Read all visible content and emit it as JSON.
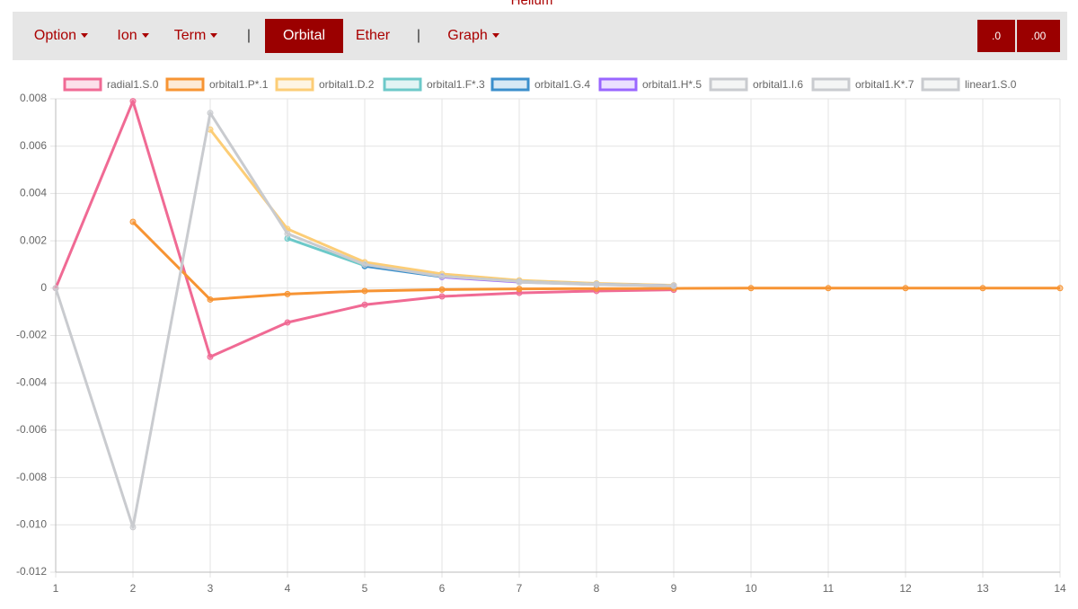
{
  "header": {
    "title": "Helium"
  },
  "nav": {
    "items": [
      "Option",
      "Ion",
      "Term",
      "|",
      "Orbital",
      "Ether",
      "|",
      "Graph"
    ],
    "buttons": [
      ".0",
      ".00"
    ]
  },
  "chart_data": {
    "type": "line",
    "x": [
      1,
      2,
      3,
      4,
      5,
      6,
      7,
      8,
      9,
      10,
      11,
      12,
      13,
      14
    ],
    "xlim": [
      1,
      14
    ],
    "xticks": [
      1,
      2,
      3,
      4,
      5,
      6,
      7,
      8,
      9,
      10,
      11,
      12,
      13,
      14
    ],
    "ylim": [
      -0.012,
      0.008
    ],
    "yticks": [
      -0.012,
      {
        "value": -0.01,
        "label": "-0.010"
      },
      -0.008,
      -0.006,
      -0.004,
      -0.002,
      0,
      0.002,
      0.004,
      0.006,
      0.008
    ],
    "grid": true,
    "series": [
      {
        "name": "radial1.S.0",
        "color": "#f06a94",
        "values": [
          0,
          0.0079,
          -0.0029,
          -0.00145,
          -0.0007,
          -0.00035,
          -0.0002,
          -0.00012,
          -7e-05,
          null,
          null,
          null,
          null,
          null
        ]
      },
      {
        "name": "orbital1.P*.1",
        "color": "#f79433",
        "values": [
          null,
          0.0028,
          -0.00048,
          -0.00025,
          -0.00012,
          -6e-05,
          -3e-05,
          -2e-05,
          -1e-05,
          0,
          0,
          0,
          0,
          0
        ]
      },
      {
        "name": "orbital1.D.2",
        "color": "#fccd76",
        "values": [
          null,
          null,
          0.0067,
          0.0025,
          0.0011,
          0.0006,
          0.00033,
          0.0002,
          0.00012,
          null,
          null,
          null,
          null,
          null
        ]
      },
      {
        "name": "orbital1.F*.3",
        "color": "#6cc9c9",
        "values": [
          null,
          null,
          null,
          0.0021,
          0.00095,
          0.0005,
          0.00028,
          0.00017,
          0.0001,
          null,
          null,
          null,
          null,
          null
        ]
      },
      {
        "name": "orbital1.G.4",
        "color": "#3b8fcc",
        "values": [
          null,
          null,
          null,
          null,
          0.00093,
          0.00048,
          0.00027,
          0.00016,
          0.0001,
          null,
          null,
          null,
          null,
          null
        ]
      },
      {
        "name": "orbital1.H*.5",
        "color": "#9966ff",
        "values": [
          null,
          null,
          null,
          null,
          null,
          0.00047,
          0.00026,
          0.00016,
          0.0001,
          null,
          null,
          null,
          null,
          null
        ]
      },
      {
        "name": "orbital1.I.6",
        "color": "#c9cbcf",
        "values": [
          null,
          null,
          null,
          null,
          null,
          null,
          0.00025,
          0.00015,
          0.0001,
          null,
          null,
          null,
          null,
          null
        ]
      },
      {
        "name": "orbital1.K*.7",
        "color": "#c9cbcf",
        "values": [
          null,
          null,
          null,
          null,
          null,
          null,
          null,
          0.00015,
          0.0001,
          null,
          null,
          null,
          null,
          null
        ]
      },
      {
        "name": "linear1.S.0",
        "color": "#c9cbcf",
        "values": [
          0,
          -0.0101,
          0.0074,
          0.0023,
          0.001,
          0.0005,
          0.00028,
          0.00017,
          0.0001,
          null,
          null,
          null,
          null,
          null
        ]
      }
    ]
  }
}
